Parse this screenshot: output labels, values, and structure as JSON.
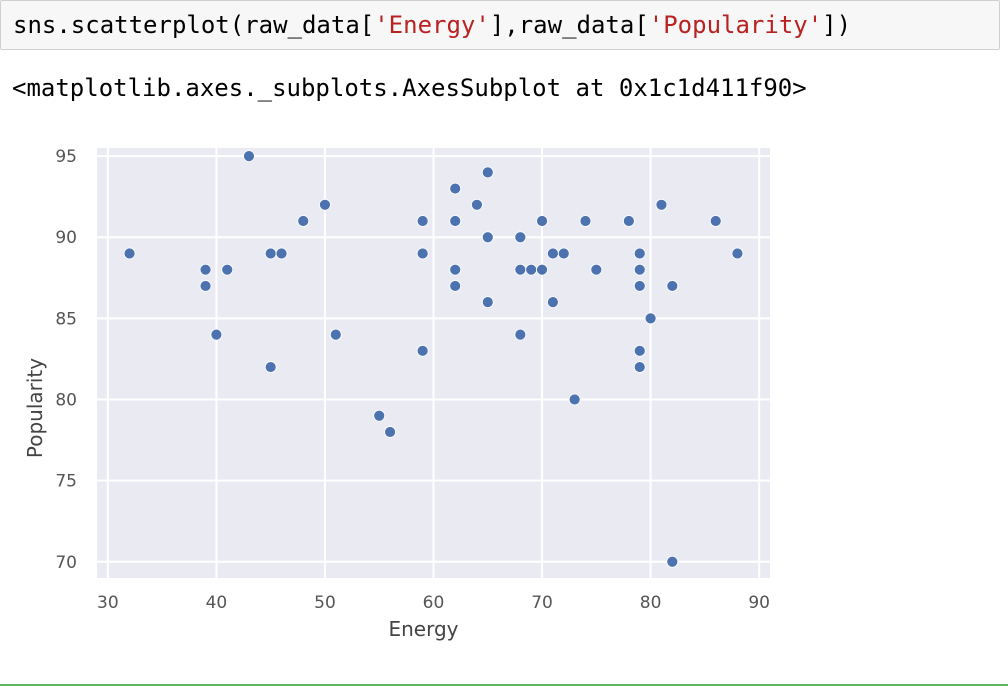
{
  "cell": {
    "code": {
      "prefix": "sns.scatterplot(raw_data[",
      "arg1": "'Energy'",
      "middle": "],raw_data[",
      "arg2": "'Popularity'",
      "suffix": "])"
    },
    "output_repr": "<matplotlib.axes._subplots.AxesSubplot at 0x1c1d411f90>"
  },
  "colors": {
    "plot_bg": "#eaeaf2",
    "grid": "#ffffff",
    "point": "#4c72b0",
    "tick_text": "#555555",
    "label_text": "#444444"
  },
  "chart_data": {
    "type": "scatter",
    "title": "",
    "xlabel": "Energy",
    "ylabel": "Popularity",
    "xlim": [
      29,
      91
    ],
    "ylim": [
      69,
      95.5
    ],
    "xticks": [
      30,
      40,
      50,
      60,
      70,
      80,
      90
    ],
    "yticks": [
      70,
      75,
      80,
      85,
      90,
      95
    ],
    "grid": true,
    "points": [
      {
        "x": 32,
        "y": 89
      },
      {
        "x": 39,
        "y": 88
      },
      {
        "x": 39,
        "y": 87
      },
      {
        "x": 40,
        "y": 84
      },
      {
        "x": 41,
        "y": 88
      },
      {
        "x": 43,
        "y": 95
      },
      {
        "x": 45,
        "y": 89
      },
      {
        "x": 46,
        "y": 89
      },
      {
        "x": 45,
        "y": 82
      },
      {
        "x": 48,
        "y": 91
      },
      {
        "x": 50,
        "y": 92
      },
      {
        "x": 51,
        "y": 84
      },
      {
        "x": 55,
        "y": 79
      },
      {
        "x": 56,
        "y": 78
      },
      {
        "x": 59,
        "y": 91
      },
      {
        "x": 59,
        "y": 89
      },
      {
        "x": 59,
        "y": 83
      },
      {
        "x": 62,
        "y": 93
      },
      {
        "x": 62,
        "y": 91
      },
      {
        "x": 62,
        "y": 88
      },
      {
        "x": 62,
        "y": 87
      },
      {
        "x": 64,
        "y": 92
      },
      {
        "x": 65,
        "y": 94
      },
      {
        "x": 65,
        "y": 90
      },
      {
        "x": 65,
        "y": 86
      },
      {
        "x": 68,
        "y": 90
      },
      {
        "x": 68,
        "y": 88
      },
      {
        "x": 69,
        "y": 88
      },
      {
        "x": 68,
        "y": 84
      },
      {
        "x": 70,
        "y": 91
      },
      {
        "x": 70,
        "y": 88
      },
      {
        "x": 71,
        "y": 89
      },
      {
        "x": 72,
        "y": 89
      },
      {
        "x": 71,
        "y": 86
      },
      {
        "x": 73,
        "y": 80
      },
      {
        "x": 74,
        "y": 91
      },
      {
        "x": 75,
        "y": 88
      },
      {
        "x": 78,
        "y": 91
      },
      {
        "x": 79,
        "y": 89
      },
      {
        "x": 79,
        "y": 88
      },
      {
        "x": 79,
        "y": 87
      },
      {
        "x": 80,
        "y": 85
      },
      {
        "x": 79,
        "y": 83
      },
      {
        "x": 79,
        "y": 82
      },
      {
        "x": 81,
        "y": 92
      },
      {
        "x": 82,
        "y": 87
      },
      {
        "x": 82,
        "y": 70
      },
      {
        "x": 86,
        "y": 91
      },
      {
        "x": 88,
        "y": 89
      }
    ]
  }
}
